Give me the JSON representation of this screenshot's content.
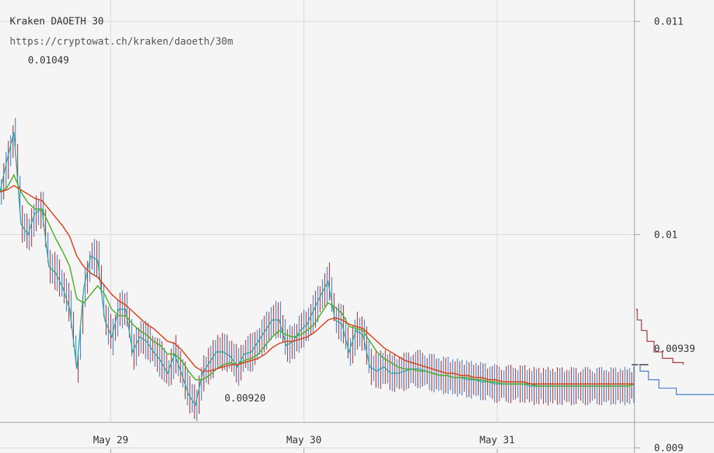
{
  "chart_data": {
    "type": "line",
    "title": "Kraken DAOETH 30",
    "subtitle": "https://cryptowat.ch/kraken/daoeth/30m",
    "xlabel": "",
    "ylabel": "",
    "ylim": [
      0.00912,
      0.0111
    ],
    "y_ticks": [
      {
        "value": 0.011,
        "label": "0.011"
      },
      {
        "value": 0.01,
        "label": "0.01"
      },
      {
        "value": 0.009,
        "label": "0.009"
      }
    ],
    "x_ticks": [
      {
        "value": 0.1745,
        "label": "May 29"
      },
      {
        "value": 0.479,
        "label": "May 30"
      },
      {
        "value": 0.7836,
        "label": "May 31"
      }
    ],
    "high_label": "0.01049",
    "low_label": "0.00920",
    "last_price_label": "0.00939",
    "grid": true,
    "series": [
      {
        "color": "#2aa6a8",
        "x": [
          0.0,
          0.011,
          0.022,
          0.033,
          0.044,
          0.055,
          0.066,
          0.077,
          0.088,
          0.099,
          0.11,
          0.121,
          0.132,
          0.143,
          0.154,
          0.165,
          0.176,
          0.187,
          0.198,
          0.209,
          0.22,
          0.231,
          0.242,
          0.253,
          0.264,
          0.275,
          0.286,
          0.297,
          0.308,
          0.319,
          0.33,
          0.341,
          0.352,
          0.363,
          0.374,
          0.385,
          0.396,
          0.407,
          0.418,
          0.429,
          0.44,
          0.451,
          0.462,
          0.473,
          0.484,
          0.495,
          0.506,
          0.517,
          0.528,
          0.539,
          0.55,
          0.561,
          0.572,
          0.583,
          0.594,
          0.605,
          0.616,
          0.627,
          0.638,
          0.649,
          0.66,
          0.671,
          0.682,
          0.693,
          0.704,
          0.715,
          0.726,
          0.737,
          0.748,
          0.759,
          0.77,
          0.781,
          0.792,
          0.803,
          0.814,
          0.825,
          0.836,
          0.847,
          0.858,
          0.869,
          0.88,
          0.891,
          0.902,
          0.913,
          0.924,
          0.935,
          0.946,
          0.957,
          0.968,
          0.979,
          0.99,
          1.0
        ],
        "values": [
          0.0102,
          0.01035,
          0.01048,
          0.01005,
          0.01,
          0.0101,
          0.01012,
          0.00985,
          0.00982,
          0.00975,
          0.00965,
          0.00937,
          0.00975,
          0.0099,
          0.00988,
          0.0096,
          0.00952,
          0.00965,
          0.00965,
          0.00945,
          0.00952,
          0.0095,
          0.00945,
          0.00941,
          0.00935,
          0.00944,
          0.00935,
          0.00925,
          0.0092,
          0.00935,
          0.0094,
          0.00945,
          0.00945,
          0.00943,
          0.00938,
          0.00944,
          0.00945,
          0.0095,
          0.00955,
          0.0096,
          0.0096,
          0.00948,
          0.0095,
          0.00955,
          0.00958,
          0.00965,
          0.00972,
          0.00978,
          0.0096,
          0.00958,
          0.00945,
          0.00955,
          0.00953,
          0.00938,
          0.00936,
          0.00938,
          0.00935,
          0.00935,
          0.00936,
          0.00937,
          0.00937,
          0.00936,
          0.00935,
          0.00934,
          0.00934,
          0.00933,
          0.00933,
          0.00932,
          0.00932,
          0.00931,
          0.00931,
          0.0093,
          0.0093,
          0.0093,
          0.0093,
          0.0093,
          0.00929,
          0.00929,
          0.00929,
          0.00929,
          0.00929,
          0.00929,
          0.00929,
          0.00929,
          0.00929,
          0.00929,
          0.00929,
          0.00929,
          0.00929,
          0.00929,
          0.00929,
          0.0093
        ]
      },
      {
        "color": "#4caf2a",
        "x": [
          0.0,
          0.011,
          0.022,
          0.033,
          0.044,
          0.055,
          0.066,
          0.077,
          0.088,
          0.099,
          0.11,
          0.121,
          0.132,
          0.143,
          0.154,
          0.165,
          0.176,
          0.187,
          0.198,
          0.209,
          0.22,
          0.231,
          0.242,
          0.253,
          0.264,
          0.275,
          0.286,
          0.297,
          0.308,
          0.319,
          0.33,
          0.341,
          0.352,
          0.363,
          0.374,
          0.385,
          0.396,
          0.407,
          0.418,
          0.429,
          0.44,
          0.451,
          0.462,
          0.473,
          0.484,
          0.495,
          0.506,
          0.517,
          0.528,
          0.539,
          0.55,
          0.561,
          0.572,
          0.583,
          0.594,
          0.605,
          0.616,
          0.627,
          0.638,
          0.649,
          0.66,
          0.671,
          0.682,
          0.693,
          0.704,
          0.715,
          0.726,
          0.737,
          0.748,
          0.759,
          0.77,
          0.781,
          0.792,
          0.803,
          0.814,
          0.825,
          0.836,
          0.847,
          0.858,
          0.869,
          0.88,
          0.891,
          0.902,
          0.913,
          0.924,
          0.935,
          0.946,
          0.957,
          0.968,
          0.979,
          0.99,
          1.0
        ],
        "values": [
          0.0102,
          0.01022,
          0.01028,
          0.0102,
          0.01015,
          0.01012,
          0.01012,
          0.01005,
          0.00998,
          0.00992,
          0.00985,
          0.0097,
          0.00968,
          0.00972,
          0.00976,
          0.00972,
          0.00965,
          0.00962,
          0.00962,
          0.00958,
          0.00955,
          0.00953,
          0.0095,
          0.00948,
          0.00944,
          0.00944,
          0.00941,
          0.00936,
          0.00932,
          0.00932,
          0.00934,
          0.00937,
          0.00939,
          0.0094,
          0.00939,
          0.00941,
          0.00942,
          0.00944,
          0.00948,
          0.00952,
          0.00955,
          0.00953,
          0.00952,
          0.00953,
          0.00955,
          0.00958,
          0.00963,
          0.00968,
          0.00966,
          0.00963,
          0.00957,
          0.00956,
          0.00955,
          0.0095,
          0.00945,
          0.00942,
          0.0094,
          0.00938,
          0.00937,
          0.00937,
          0.00936,
          0.00936,
          0.00935,
          0.00934,
          0.00934,
          0.00933,
          0.00933,
          0.00933,
          0.00932,
          0.00932,
          0.00931,
          0.00931,
          0.0093,
          0.0093,
          0.0093,
          0.0093,
          0.0093,
          0.00929,
          0.00929,
          0.00929,
          0.00929,
          0.00929,
          0.00929,
          0.00929,
          0.00929,
          0.00929,
          0.00929,
          0.00929,
          0.00929,
          0.00929,
          0.00929,
          0.0093
        ]
      },
      {
        "color": "#d9421d",
        "x": [
          0.0,
          0.011,
          0.022,
          0.033,
          0.044,
          0.055,
          0.066,
          0.077,
          0.088,
          0.099,
          0.11,
          0.121,
          0.132,
          0.143,
          0.154,
          0.165,
          0.176,
          0.187,
          0.198,
          0.209,
          0.22,
          0.231,
          0.242,
          0.253,
          0.264,
          0.275,
          0.286,
          0.297,
          0.308,
          0.319,
          0.33,
          0.341,
          0.352,
          0.363,
          0.374,
          0.385,
          0.396,
          0.407,
          0.418,
          0.429,
          0.44,
          0.451,
          0.462,
          0.473,
          0.484,
          0.495,
          0.506,
          0.517,
          0.528,
          0.539,
          0.55,
          0.561,
          0.572,
          0.583,
          0.594,
          0.605,
          0.616,
          0.627,
          0.638,
          0.649,
          0.66,
          0.671,
          0.682,
          0.693,
          0.704,
          0.715,
          0.726,
          0.737,
          0.748,
          0.759,
          0.77,
          0.781,
          0.792,
          0.803,
          0.814,
          0.825,
          0.836,
          0.847,
          0.858,
          0.869,
          0.88,
          0.891,
          0.902,
          0.913,
          0.924,
          0.935,
          0.946,
          0.957,
          0.968,
          0.979,
          0.99,
          1.0
        ],
        "values": [
          0.0102,
          0.01021,
          0.01023,
          0.01021,
          0.01019,
          0.01017,
          0.01016,
          0.01012,
          0.01008,
          0.01004,
          0.00999,
          0.0099,
          0.00985,
          0.00982,
          0.0098,
          0.00976,
          0.00972,
          0.00969,
          0.00967,
          0.00964,
          0.00961,
          0.00958,
          0.00956,
          0.00953,
          0.0095,
          0.00949,
          0.00946,
          0.00942,
          0.00938,
          0.00936,
          0.00936,
          0.00937,
          0.00938,
          0.00939,
          0.00939,
          0.0094,
          0.00941,
          0.00942,
          0.00944,
          0.00947,
          0.00949,
          0.0095,
          0.0095,
          0.00951,
          0.00952,
          0.00954,
          0.00957,
          0.0096,
          0.00961,
          0.0096,
          0.00958,
          0.00957,
          0.00956,
          0.00953,
          0.0095,
          0.00947,
          0.00945,
          0.00943,
          0.00941,
          0.0094,
          0.00939,
          0.00938,
          0.00937,
          0.00936,
          0.00935,
          0.00935,
          0.00934,
          0.00934,
          0.00933,
          0.00933,
          0.00932,
          0.00932,
          0.00931,
          0.00931,
          0.00931,
          0.00931,
          0.0093,
          0.0093,
          0.0093,
          0.0093,
          0.0093,
          0.0093,
          0.0093,
          0.0093,
          0.0093,
          0.0093,
          0.0093,
          0.0093,
          0.0093,
          0.0093,
          0.0093,
          0.0093
        ]
      }
    ],
    "depth": {
      "bids_color": "#a83a3a",
      "asks_color": "#4a7fc8",
      "bids": [
        [
          0.00965,
          2
        ],
        [
          0.0096,
          4
        ],
        [
          0.00955,
          10
        ],
        [
          0.0095,
          18
        ],
        [
          0.00945,
          28
        ],
        [
          0.00942,
          40
        ],
        [
          0.0094,
          55
        ],
        [
          0.00939,
          70
        ]
      ],
      "asks": [
        [
          0.00939,
          2
        ],
        [
          0.00936,
          8
        ],
        [
          0.00932,
          20
        ],
        [
          0.00928,
          35
        ],
        [
          0.00925,
          60
        ],
        [
          0.00925,
          115
        ]
      ]
    }
  }
}
